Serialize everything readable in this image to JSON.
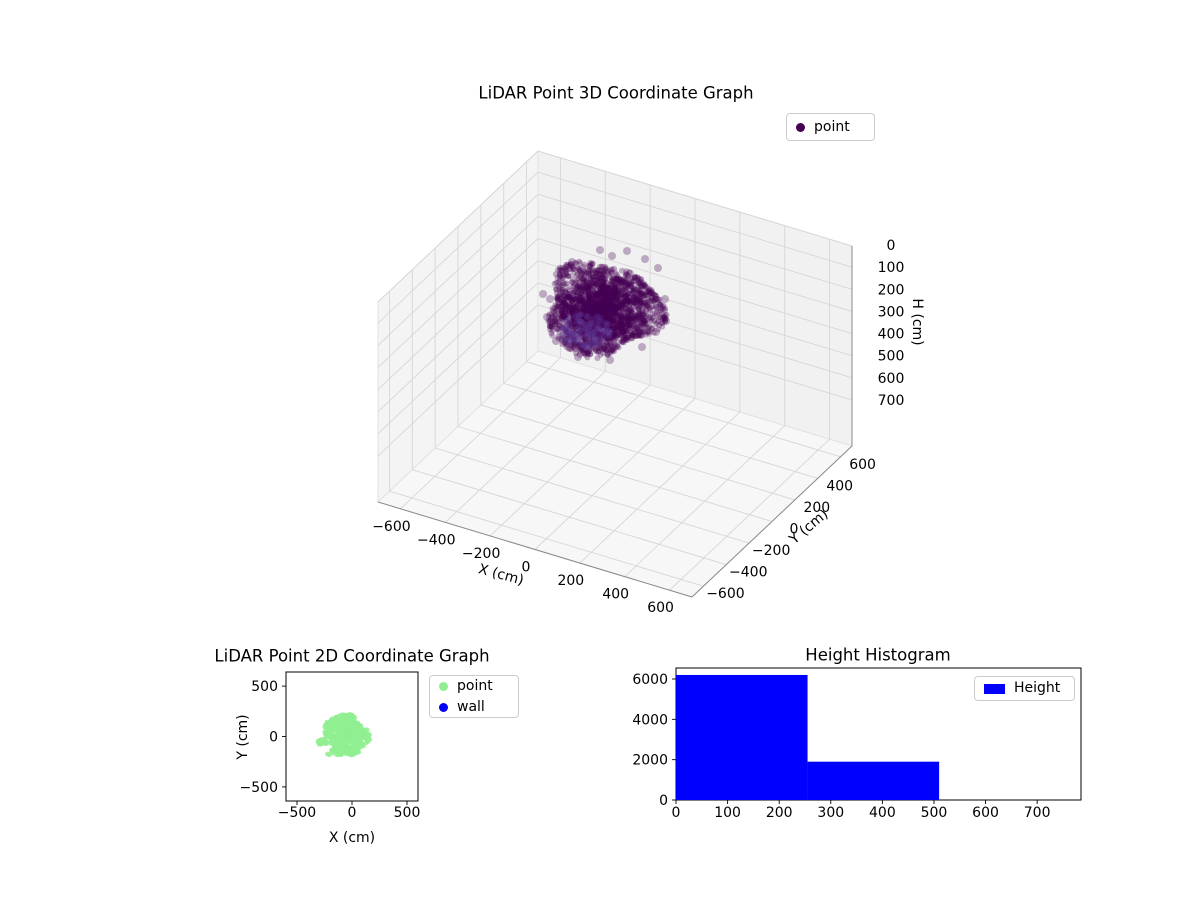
{
  "chart_data": [
    {
      "id": "lidar-3d",
      "type": "scatter",
      "projection": "3d",
      "title": "LiDAR Point 3D Coordinate Graph",
      "xlabel": "X (cm)",
      "ylabel": "Y (cm)",
      "zlabel": "H (cm)",
      "xlim": [
        -700,
        700
      ],
      "ylim": [
        -700,
        700
      ],
      "zlim": [
        0,
        840
      ],
      "zaxis_inverted": true,
      "xticks": [
        -600,
        -400,
        -200,
        0,
        200,
        400,
        600
      ],
      "yticks": [
        -600,
        -400,
        -200,
        0,
        200,
        400,
        600
      ],
      "zticks": [
        0,
        100,
        200,
        300,
        400,
        500,
        600,
        700
      ],
      "grid": true,
      "legend": {
        "position": "upper right",
        "entries": [
          {
            "label": "point",
            "color": "#440154"
          }
        ]
      },
      "series_summary": {
        "name": "point",
        "color": "#440154",
        "marker": "dot",
        "approx_point_count": 8100,
        "cluster": {
          "center_cm": [
            -60,
            10,
            150
          ],
          "radius_cm": 250,
          "height_range_cm": [
            0,
            510
          ]
        }
      }
    },
    {
      "id": "lidar-2d",
      "type": "scatter",
      "title": "LiDAR Point 2D Coordinate Graph",
      "xlabel": "X (cm)",
      "ylabel": "Y (cm)",
      "xlim": [
        -600,
        600
      ],
      "ylim": [
        -640,
        640
      ],
      "xticks": [
        -500,
        0,
        500
      ],
      "yticks": [
        -500,
        0,
        500
      ],
      "grid": false,
      "legend": {
        "position": "outside upper right",
        "entries": [
          {
            "label": "point",
            "color": "#90ee90"
          },
          {
            "label": "wall",
            "color": "#0000ff"
          }
        ]
      },
      "series_summary": {
        "name": "point",
        "color": "#90ee90",
        "marker": "dot",
        "cluster": {
          "center_cm": [
            -60,
            10
          ],
          "radius_cm": 210
        }
      }
    },
    {
      "id": "height-histogram",
      "type": "bar",
      "title": "Height Histogram",
      "xlabel": "",
      "ylabel": "",
      "xlim": [
        0,
        785
      ],
      "ylim": [
        0,
        6545
      ],
      "xticks": [
        0,
        100,
        200,
        300,
        400,
        500,
        600,
        700
      ],
      "yticks": [
        0,
        2000,
        4000,
        6000
      ],
      "grid": false,
      "legend": {
        "position": "upper right",
        "entries": [
          {
            "label": "Height",
            "color": "#0000ff"
          }
        ]
      },
      "bins": [
        {
          "range": [
            0,
            255
          ],
          "count": 6200
        },
        {
          "range": [
            255,
            510
          ],
          "count": 1900
        }
      ]
    }
  ]
}
